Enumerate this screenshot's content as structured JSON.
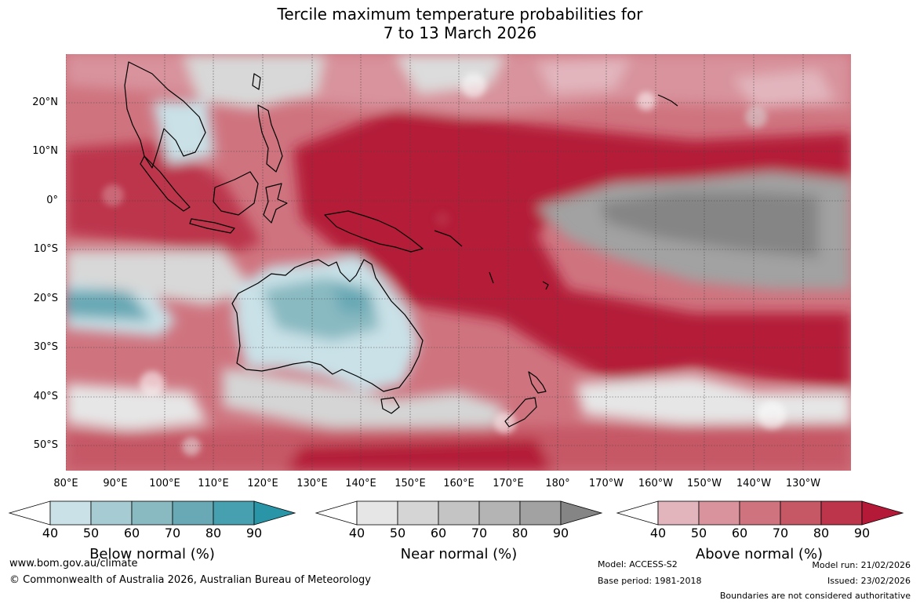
{
  "title": {
    "line1": "Tercile maximum temperature probabilities for",
    "line2": "7 to 13 March 2026"
  },
  "lat_labels": [
    "20°N",
    "10°N",
    "0°",
    "10°S",
    "20°S",
    "30°S",
    "40°S",
    "50°S"
  ],
  "lon_labels": [
    "80°E",
    "90°E",
    "100°E",
    "110°E",
    "120°E",
    "130°E",
    "140°E",
    "150°E",
    "160°E",
    "170°E",
    "180°",
    "170°W",
    "160°W",
    "150°W",
    "140°W",
    "130°W"
  ],
  "colorbars": [
    {
      "name": "below",
      "label": "Below normal (%)",
      "ticks": [
        "40",
        "50",
        "60",
        "70",
        "80",
        "90"
      ],
      "colors": [
        "#ffffff",
        "#c9e1e7",
        "#a7cbd2",
        "#89b9c1",
        "#69a9b5",
        "#46a0b0",
        "#2a95a6"
      ]
    },
    {
      "name": "near",
      "label": "Near normal (%)",
      "ticks": [
        "40",
        "50",
        "60",
        "70",
        "80",
        "90"
      ],
      "colors": [
        "#ffffff",
        "#e6e6e6",
        "#d5d5d5",
        "#c4c4c4",
        "#b4b4b4",
        "#a2a2a2",
        "#858585"
      ]
    },
    {
      "name": "above",
      "label": "Above normal (%)",
      "ticks": [
        "40",
        "50",
        "60",
        "70",
        "80",
        "90"
      ],
      "colors": [
        "#ffffff",
        "#e2b5bd",
        "#d8939c",
        "#cf747f",
        "#c65866",
        "#bc354b",
        "#b41a37"
      ]
    }
  ],
  "footer": {
    "url": "www.bom.gov.au/climate",
    "copyright": "© Commonwealth of Australia 2026, Australian Bureau of Meteorology",
    "model": "Model: ACCESS-S2",
    "base_period": "Base period: 1981-2018",
    "model_run": "Model run: 21/02/2026",
    "issued": "Issued: 23/02/2026",
    "disclaimer": "Boundaries are not considered authoritative"
  },
  "map_colors": {
    "ocean_above_strong": "#b41a37",
    "above_mid": "#c65866",
    "above_light": "#d8939c",
    "near_light": "#d8d8d8",
    "near_dark": "#8a8a8a",
    "below_light": "#c9e1e7",
    "below_mid": "#69a9b5"
  }
}
